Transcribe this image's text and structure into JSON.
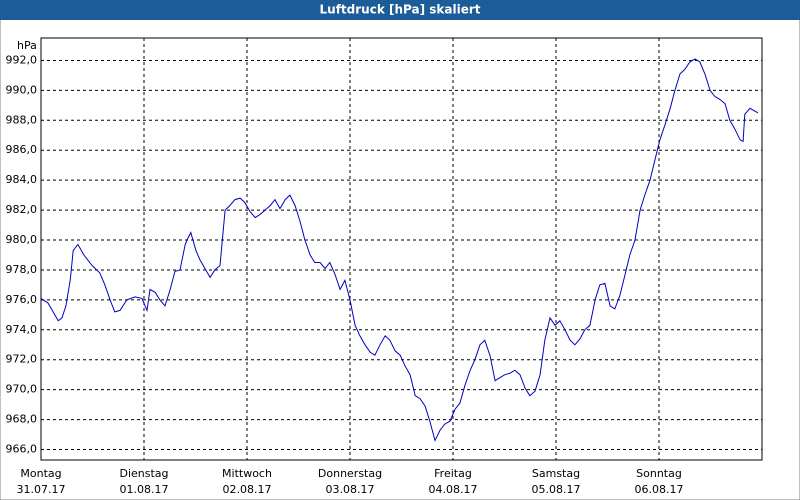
{
  "chart_data": {
    "type": "line",
    "title": "Luftdruck [hPa] skaliert",
    "y_label": "hPa",
    "xlim": [
      0,
      168
    ],
    "ylim": [
      965.3,
      993.5
    ],
    "grid": true,
    "color": "#0000c0",
    "xticks": [
      {
        "value": 0,
        "label": "31.07.17"
      },
      {
        "value": 24,
        "label": "01.08.17"
      },
      {
        "value": 48,
        "label": "02.08.17"
      },
      {
        "value": 72,
        "label": "03.08.17"
      },
      {
        "value": 96,
        "label": "04.08.17"
      },
      {
        "value": 120,
        "label": "05.08.17"
      },
      {
        "value": 144,
        "label": "06.08.17"
      }
    ],
    "xtick_weekdays": [
      "Montag",
      "Dienstag",
      "Mittwoch",
      "Donnerstag",
      "Freitag",
      "Samstag",
      "Sonntag"
    ],
    "yticks": [
      {
        "value": 966,
        "label": "966,0"
      },
      {
        "value": 968,
        "label": "968,0"
      },
      {
        "value": 970,
        "label": "970,0"
      },
      {
        "value": 972,
        "label": "972,0"
      },
      {
        "value": 974,
        "label": "974,0"
      },
      {
        "value": 976,
        "label": "976,0"
      },
      {
        "value": 978,
        "label": "978,0"
      },
      {
        "value": 980,
        "label": "980,0"
      },
      {
        "value": 982,
        "label": "982,0"
      },
      {
        "value": 984,
        "label": "984,0"
      },
      {
        "value": 986,
        "label": "986,0"
      },
      {
        "value": 988,
        "label": "988,0"
      },
      {
        "value": 990,
        "label": "990,0"
      },
      {
        "value": 992,
        "label": "992,0"
      }
    ],
    "x": [
      0,
      1.6,
      4.0,
      4.9,
      5.8,
      6.8,
      7.5,
      8.6,
      10.0,
      11.9,
      13.7,
      14.9,
      16.1,
      17.2,
      18.4,
      20.0,
      21.9,
      23.5,
      24.7,
      25.4,
      26.6,
      27.7,
      28.9,
      30.1,
      31.2,
      32.4,
      33.6,
      34.2,
      34.9,
      36.1,
      37.0,
      38.2,
      39.4,
      40.5,
      41.7,
      42.9,
      44.0,
      45.2,
      46.4,
      47.5,
      48.7,
      49.9,
      51.0,
      52.2,
      53.4,
      54.5,
      55.7,
      56.9,
      58.0,
      59.2,
      60.3,
      61.5,
      62.7,
      63.8,
      65.0,
      66.2,
      67.3,
      68.5,
      69.7,
      70.8,
      72.0,
      73.2,
      74.3,
      75.5,
      76.7,
      77.8,
      79.0,
      80.2,
      81.3,
      82.5,
      83.7,
      84.8,
      86.0,
      87.2,
      88.3,
      89.5,
      90.6,
      91.8,
      93.0,
      94.1,
      95.3,
      96.5,
      97.6,
      98.8,
      100.0,
      101.1,
      102.3,
      103.4,
      104.6,
      105.8,
      106.9,
      108.1,
      109.3,
      110.4,
      111.6,
      112.8,
      113.9,
      115.1,
      116.3,
      117.4,
      118.6,
      119.8,
      120.9,
      122.1,
      123.3,
      124.4,
      125.6,
      126.7,
      127.9,
      129.1,
      130.2,
      131.4,
      132.6,
      133.7,
      134.9,
      136.1,
      137.2,
      138.4,
      139.6,
      140.7,
      141.9,
      143.1,
      144.2,
      145.4,
      146.6,
      147.7,
      148.9,
      150.0,
      151.2,
      152.4,
      153.5,
      154.7,
      155.9,
      157.0,
      158.2,
      159.4,
      160.5,
      161.7,
      162.9,
      163.6,
      164.0,
      165.2,
      166.4,
      167.1
    ],
    "values": [
      976.1,
      975.8,
      974.6,
      974.8,
      975.6,
      977.3,
      979.3,
      979.7,
      979.0,
      978.3,
      977.8,
      977.0,
      976.0,
      975.2,
      975.3,
      976.0,
      976.2,
      976.1,
      975.3,
      976.7,
      976.5,
      976.0,
      975.6,
      976.7,
      977.9,
      978.0,
      979.7,
      980.1,
      980.5,
      979.3,
      978.7,
      978.1,
      977.5,
      978.0,
      978.3,
      982.0,
      982.3,
      982.7,
      982.8,
      982.5,
      981.9,
      981.5,
      981.7,
      982.0,
      982.3,
      982.7,
      982.1,
      982.7,
      983.0,
      982.3,
      981.3,
      980.0,
      979.0,
      978.5,
      978.5,
      978.1,
      978.5,
      977.7,
      976.7,
      977.3,
      976.0,
      974.3,
      973.6,
      973.0,
      972.5,
      972.3,
      973.0,
      973.6,
      973.3,
      972.6,
      972.3,
      971.6,
      971.0,
      969.6,
      969.4,
      968.9,
      967.9,
      966.6,
      967.3,
      967.7,
      967.9,
      968.7,
      969.1,
      970.3,
      971.3,
      972.0,
      973.0,
      973.3,
      972.3,
      970.6,
      970.8,
      971.0,
      971.1,
      971.3,
      971.0,
      970.1,
      969.6,
      969.9,
      971.0,
      973.3,
      974.8,
      974.3,
      974.6,
      974.0,
      973.3,
      973.0,
      973.4,
      974.0,
      974.3,
      976.0,
      977.0,
      977.1,
      975.6,
      975.4,
      976.3,
      977.7,
      979.0,
      980.0,
      982.0,
      983.0,
      984.0,
      985.4,
      986.7,
      987.7,
      988.8,
      990.0,
      991.1,
      991.4,
      991.9,
      992.1,
      991.9,
      991.1,
      990.0,
      989.6,
      989.4,
      989.1,
      988.0,
      987.4,
      986.7,
      986.6,
      988.4,
      988.8,
      988.6,
      988.5
    ]
  }
}
